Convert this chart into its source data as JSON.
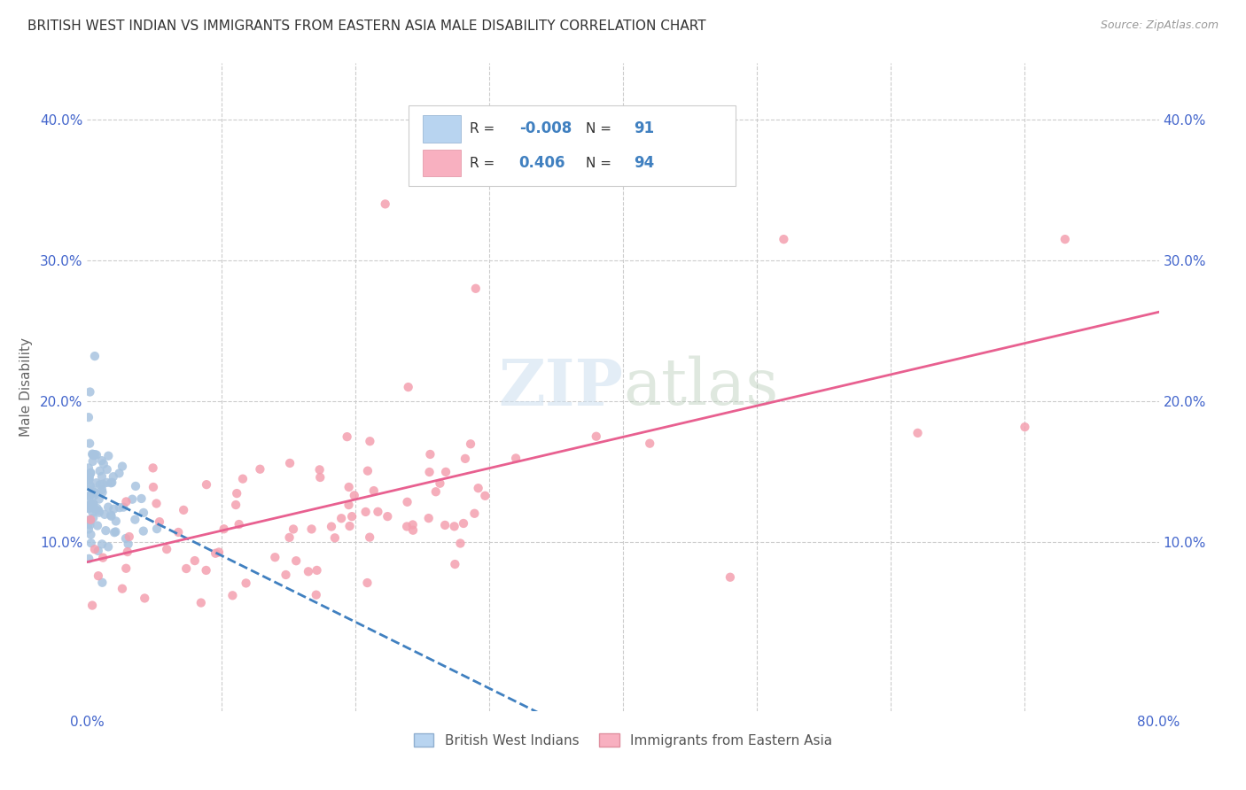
{
  "title": "BRITISH WEST INDIAN VS IMMIGRANTS FROM EASTERN ASIA MALE DISABILITY CORRELATION CHART",
  "source": "Source: ZipAtlas.com",
  "ylabel": "Male Disability",
  "xlim": [
    0.0,
    0.8
  ],
  "ylim": [
    -0.02,
    0.44
  ],
  "r_blue": -0.008,
  "n_blue": 91,
  "r_pink": 0.406,
  "n_pink": 94,
  "legend_blue_label": "British West Indians",
  "legend_pink_label": "Immigrants from Eastern Asia",
  "watermark_zip": "ZIP",
  "watermark_atlas": "atlas",
  "bg_color": "#ffffff",
  "grid_color": "#cccccc",
  "blue_color": "#a8c4e0",
  "pink_color": "#f4a0b0",
  "trend_blue_color": "#4080c0",
  "trend_pink_color": "#e86090",
  "axis_color": "#4466cc",
  "title_color": "#333333"
}
